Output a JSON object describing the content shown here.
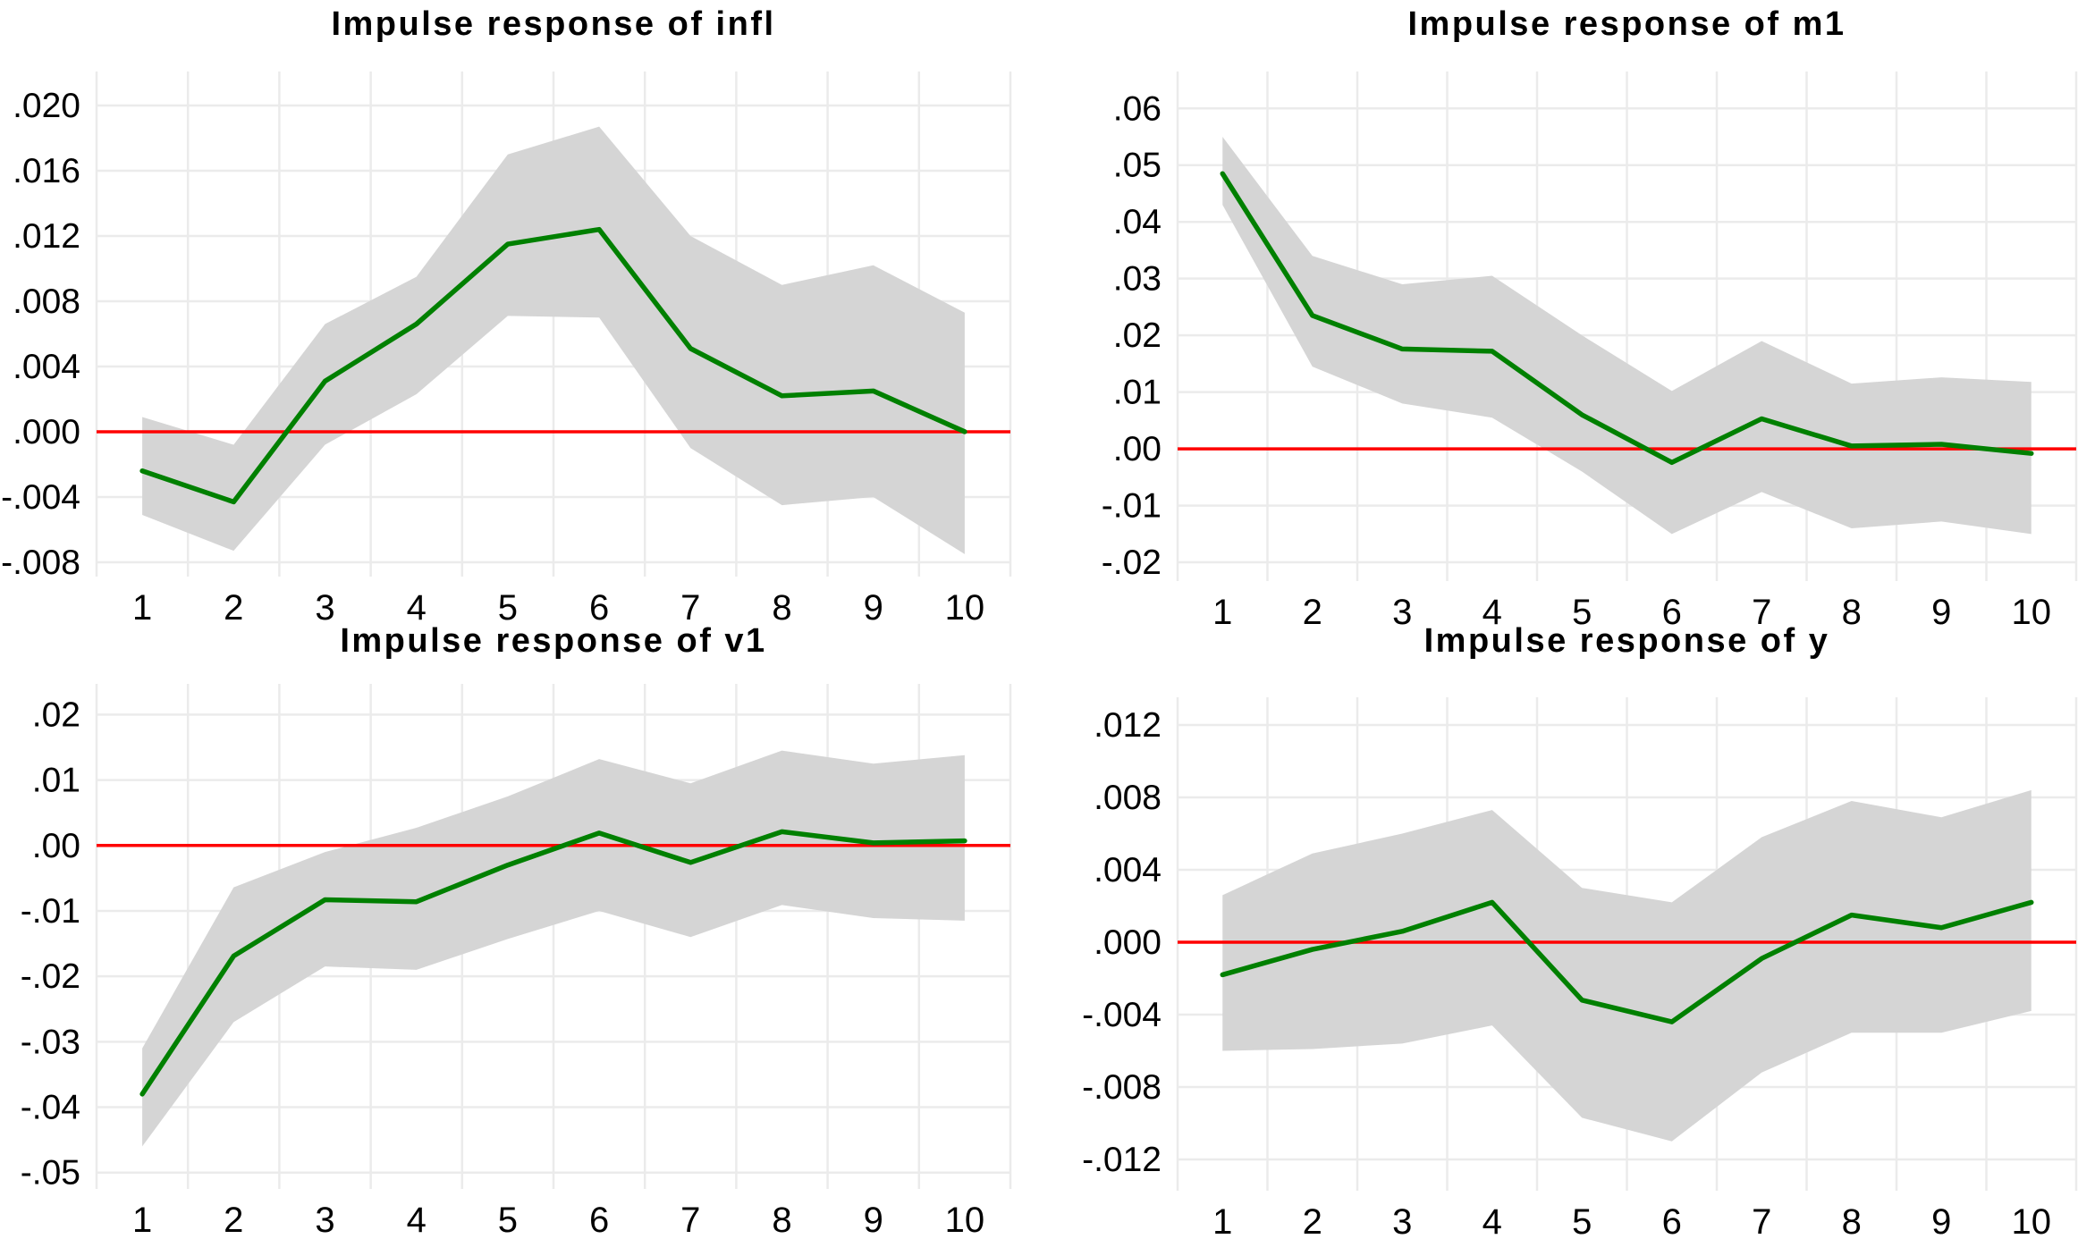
{
  "colors": {
    "line": "#008000",
    "zero_line": "#ff0000",
    "band": "#d5d5d5",
    "grid": "#ebebeb",
    "text": "#000000",
    "background": "#ffffff"
  },
  "chart_data": [
    {
      "id": "infl",
      "type": "line",
      "title": "Impulse response of infl",
      "xlabel": "",
      "ylabel": "",
      "legend": "none",
      "grid": "on",
      "xlim": [
        0.5,
        10.5
      ],
      "ylim": [
        -0.00888,
        0.02208
      ],
      "x": [
        1,
        2,
        3,
        4,
        5,
        6,
        7,
        8,
        9,
        10
      ],
      "x_tick_labels": [
        "1",
        "2",
        "3",
        "4",
        "5",
        "6",
        "7",
        "8",
        "9",
        "10"
      ],
      "y_ticks": [
        {
          "label": ".020",
          "value": 0.02
        },
        {
          "label": ".016",
          "value": 0.016
        },
        {
          "label": ".012",
          "value": 0.012
        },
        {
          "label": ".008",
          "value": 0.008
        },
        {
          "label": ".004",
          "value": 0.004
        },
        {
          "label": ".000",
          "value": 0.0
        },
        {
          "label": "-.004",
          "value": -0.004
        },
        {
          "label": "-.008",
          "value": -0.008
        }
      ],
      "zero_line": 0,
      "series": [
        {
          "name": "impulse response",
          "values": [
            -0.0024,
            -0.0043,
            0.0031,
            0.0066,
            0.0115,
            0.0124,
            0.0051,
            0.0022,
            0.0025,
            0.0
          ]
        }
      ],
      "ci_upper": [
        0.0009,
        -0.0008,
        0.0066,
        0.0095,
        0.017,
        0.0187,
        0.012,
        0.009,
        0.0102,
        0.0073
      ],
      "ci_lower": [
        -0.0051,
        -0.0073,
        -0.0008,
        0.0023,
        0.0071,
        0.007,
        -0.001,
        -0.0045,
        -0.004,
        -0.0075
      ]
    },
    {
      "id": "m1",
      "type": "line",
      "title": "Impulse response of m1",
      "xlabel": "",
      "ylabel": "",
      "legend": "none",
      "grid": "on",
      "xlim": [
        0.5,
        10.5
      ],
      "ylim": [
        -0.0233,
        0.0665
      ],
      "x": [
        1,
        2,
        3,
        4,
        5,
        6,
        7,
        8,
        9,
        10
      ],
      "x_tick_labels": [
        "1",
        "2",
        "3",
        "4",
        "5",
        "6",
        "7",
        "8",
        "9",
        "10"
      ],
      "y_ticks": [
        {
          "label": ".06",
          "value": 0.06
        },
        {
          "label": ".05",
          "value": 0.05
        },
        {
          "label": ".04",
          "value": 0.04
        },
        {
          "label": ".03",
          "value": 0.03
        },
        {
          "label": ".02",
          "value": 0.02
        },
        {
          "label": ".01",
          "value": 0.01
        },
        {
          "label": ".00",
          "value": 0.0
        },
        {
          "label": "-.01",
          "value": -0.01
        },
        {
          "label": "-.02",
          "value": -0.02
        }
      ],
      "zero_line": 0,
      "series": [
        {
          "name": "impulse response",
          "values": [
            0.0485,
            0.0235,
            0.0176,
            0.0172,
            0.006,
            -0.0024,
            0.0053,
            0.0005,
            0.0008,
            -0.0008
          ]
        }
      ],
      "ci_upper": [
        0.055,
        0.034,
        0.029,
        0.0305,
        0.02,
        0.0102,
        0.019,
        0.0115,
        0.0126,
        0.0118
      ],
      "ci_lower": [
        0.043,
        0.0145,
        0.008,
        0.0055,
        -0.004,
        -0.015,
        -0.0076,
        -0.014,
        -0.0128,
        -0.015
      ]
    },
    {
      "id": "v1",
      "type": "line",
      "title": "Impulse response of v1",
      "xlabel": "",
      "ylabel": "",
      "legend": "none",
      "grid": "on",
      "xlim": [
        0.5,
        10.5
      ],
      "ylim": [
        -0.0525,
        0.0247
      ],
      "x": [
        1,
        2,
        3,
        4,
        5,
        6,
        7,
        8,
        9,
        10
      ],
      "x_tick_labels": [
        "1",
        "2",
        "3",
        "4",
        "5",
        "6",
        "7",
        "8",
        "9",
        "10"
      ],
      "y_ticks": [
        {
          "label": ".02",
          "value": 0.02
        },
        {
          "label": ".01",
          "value": 0.01
        },
        {
          "label": ".00",
          "value": 0.0
        },
        {
          "label": "-.01",
          "value": -0.01
        },
        {
          "label": "-.02",
          "value": -0.02
        },
        {
          "label": "-.03",
          "value": -0.03
        },
        {
          "label": "-.04",
          "value": -0.04
        },
        {
          "label": "-.05",
          "value": -0.05
        }
      ],
      "zero_line": 0,
      "series": [
        {
          "name": "impulse response",
          "values": [
            -0.038,
            -0.0169,
            -0.0083,
            -0.0086,
            -0.003,
            0.0019,
            -0.0026,
            0.0021,
            0.0004,
            0.0007
          ]
        }
      ],
      "ci_upper": [
        -0.031,
        -0.0064,
        -0.001,
        0.0027,
        0.0075,
        0.0132,
        0.0095,
        0.0145,
        0.0125,
        0.0138
      ],
      "ci_lower": [
        -0.046,
        -0.027,
        -0.0185,
        -0.019,
        -0.0143,
        -0.01,
        -0.014,
        -0.0091,
        -0.0111,
        -0.0115
      ]
    },
    {
      "id": "y",
      "type": "line",
      "title": "Impulse response of y",
      "xlabel": "",
      "ylabel": "",
      "legend": "none",
      "grid": "on",
      "xlim": [
        0.5,
        10.5
      ],
      "ylim": [
        -0.01373,
        0.01353
      ],
      "x": [
        1,
        2,
        3,
        4,
        5,
        6,
        7,
        8,
        9,
        10
      ],
      "x_tick_labels": [
        "1",
        "2",
        "3",
        "4",
        "5",
        "6",
        "7",
        "8",
        "9",
        "10"
      ],
      "y_ticks": [
        {
          "label": ".012",
          "value": 0.012
        },
        {
          "label": ".008",
          "value": 0.008
        },
        {
          "label": ".004",
          "value": 0.004
        },
        {
          "label": ".000",
          "value": 0.0
        },
        {
          "label": "-.004",
          "value": -0.004
        },
        {
          "label": "-.008",
          "value": -0.008
        },
        {
          "label": "-.012",
          "value": -0.012
        }
      ],
      "zero_line": 0,
      "series": [
        {
          "name": "impulse response",
          "values": [
            -0.0018,
            -0.0004,
            0.0006,
            0.0022,
            -0.0032,
            -0.0044,
            -0.0009,
            0.0015,
            0.0008,
            0.0022
          ]
        }
      ],
      "ci_upper": [
        0.0026,
        0.0049,
        0.006,
        0.0073,
        0.003,
        0.0022,
        0.0058,
        0.0078,
        0.0069,
        0.0084
      ],
      "ci_lower": [
        -0.006,
        -0.0059,
        -0.0056,
        -0.0046,
        -0.0097,
        -0.011,
        -0.0072,
        -0.005,
        -0.005,
        -0.0038
      ]
    }
  ]
}
